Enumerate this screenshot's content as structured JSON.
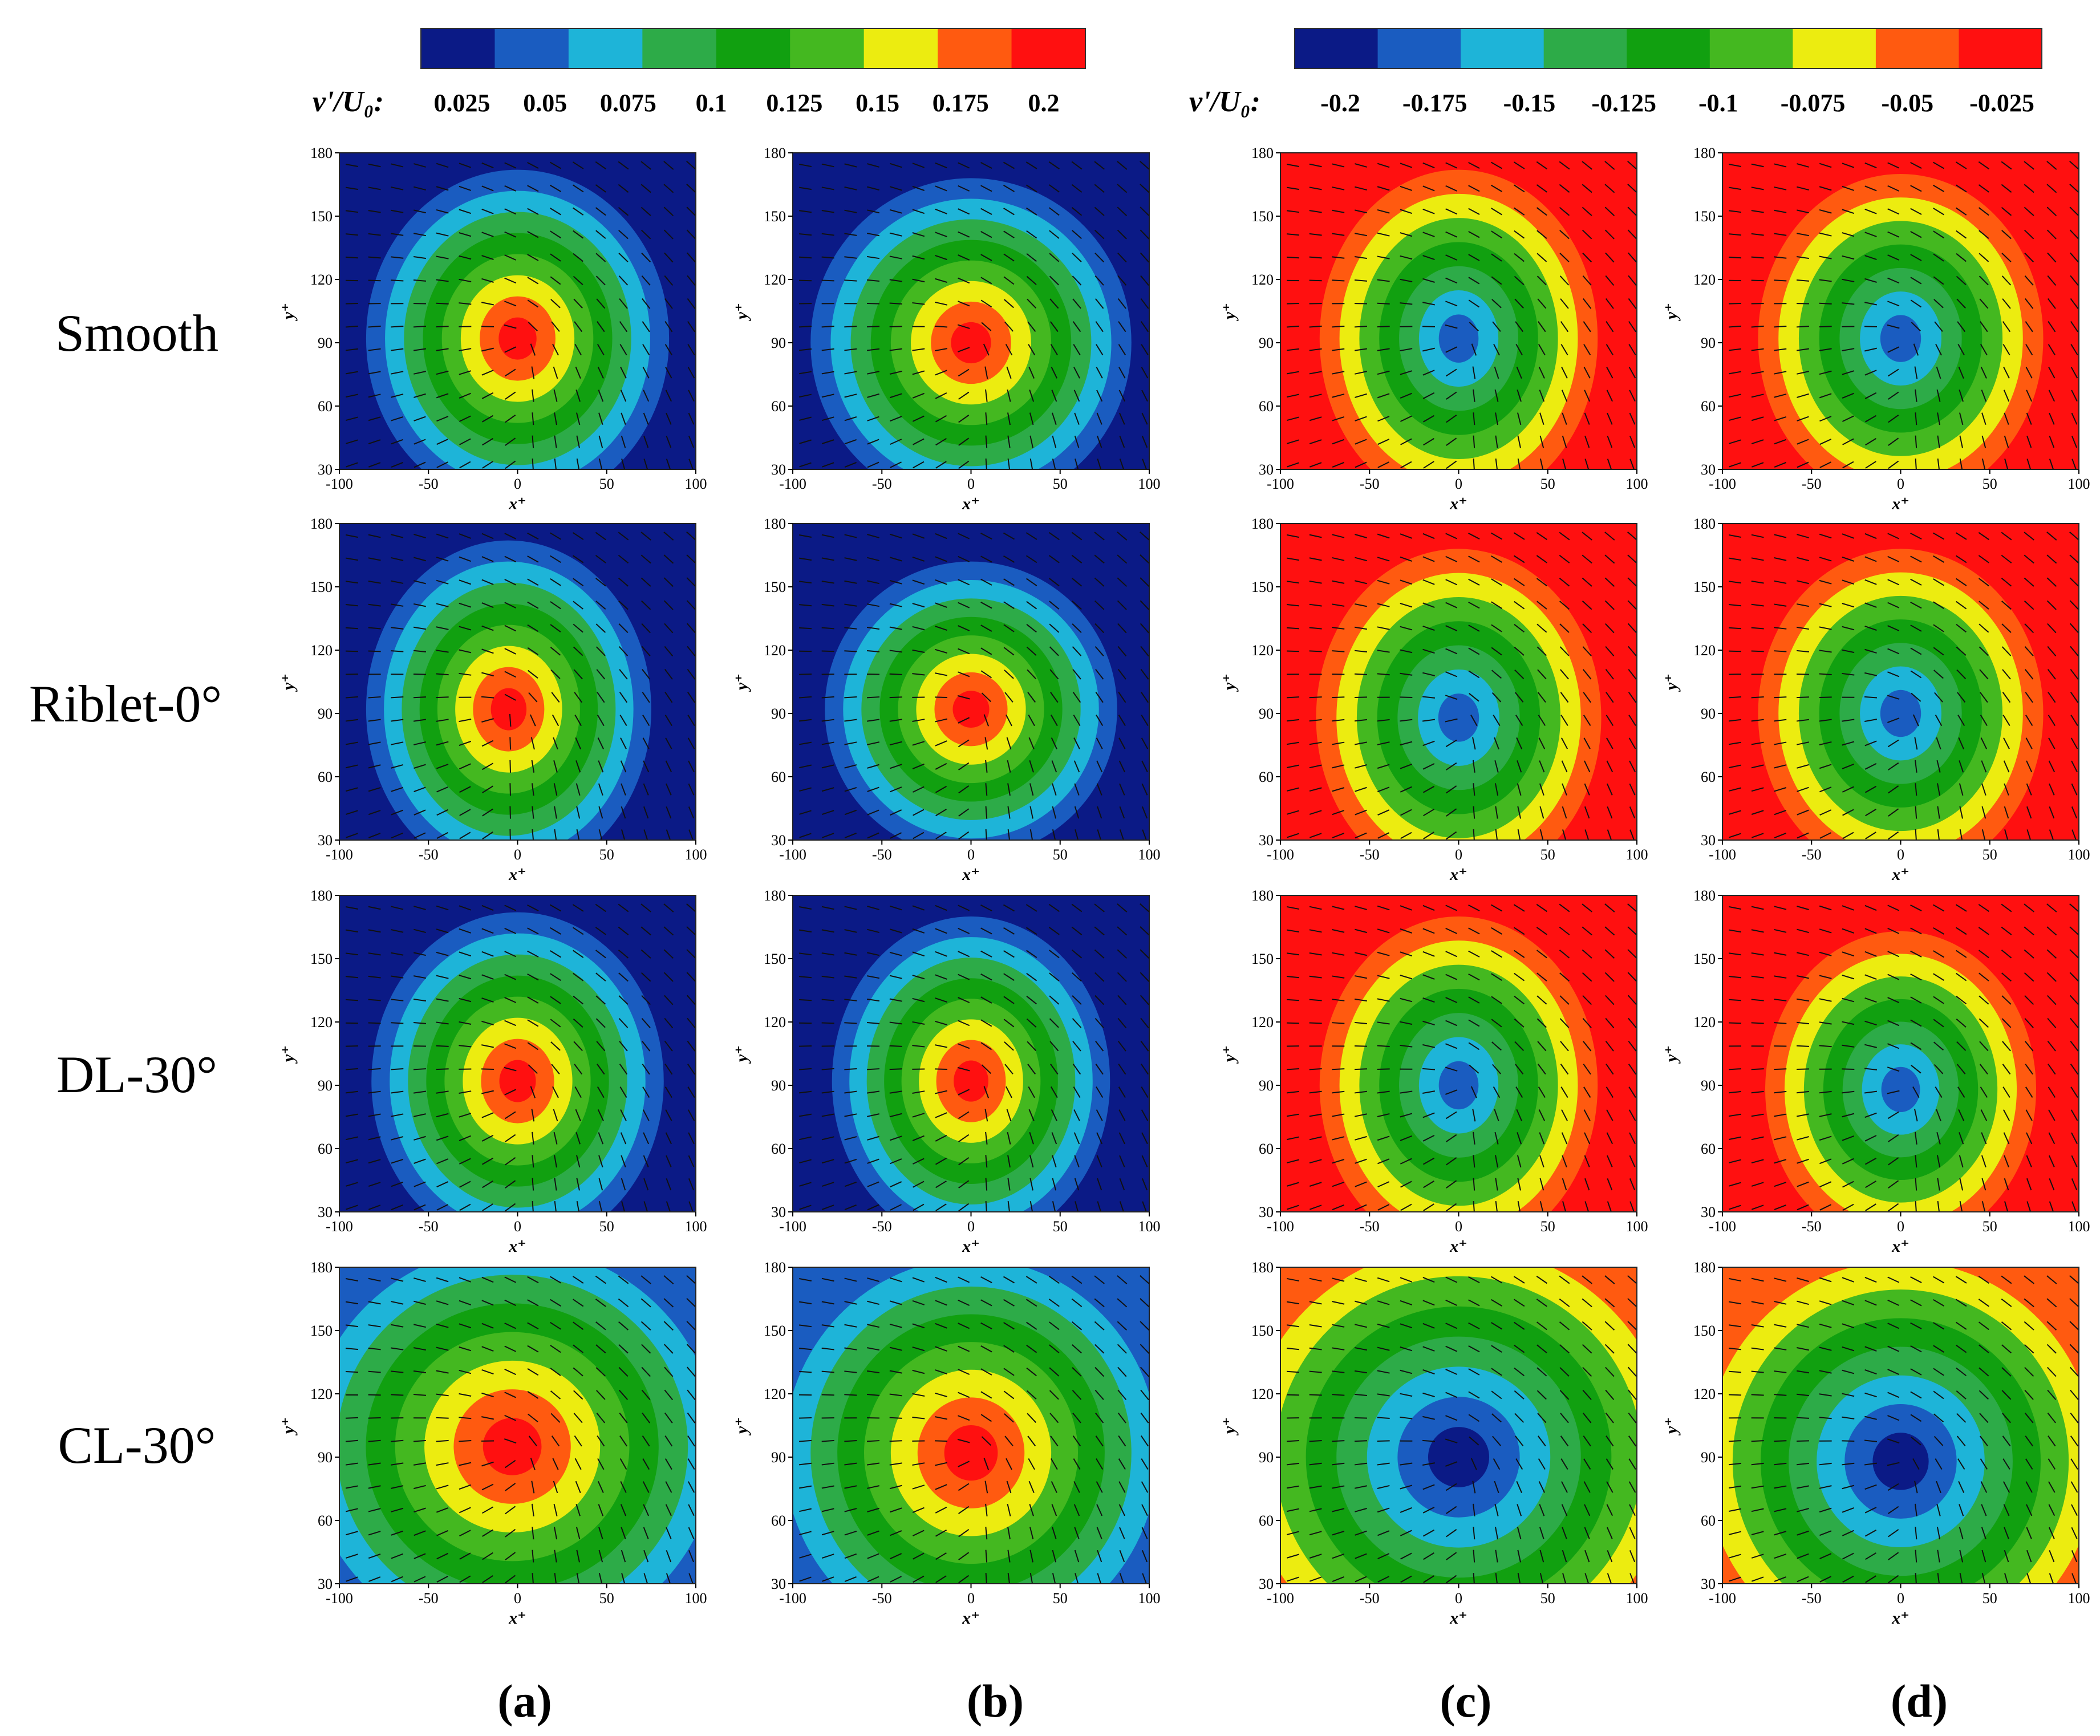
{
  "chart_data": {
    "type": "contour",
    "colorbars": [
      {
        "id": "positive",
        "variable": "v'/U₀:",
        "ticks": [
          "0.025",
          "0.05",
          "0.075",
          "0.1",
          "0.125",
          "0.15",
          "0.175",
          "0.2"
        ],
        "colors": [
          "#0b1a86",
          "#1a5cc0",
          "#1eb4d8",
          "#2dab48",
          "#11a010",
          "#44b820",
          "#ecec10",
          "#ff5a10",
          "#ff1010"
        ]
      },
      {
        "id": "negative",
        "variable": "v'/U₀:",
        "ticks": [
          "-0.2",
          "-0.175",
          "-0.15",
          "-0.125",
          "-0.1",
          "-0.075",
          "-0.05",
          "-0.025"
        ],
        "colors": [
          "#0b1a86",
          "#1a5cc0",
          "#1eb4d8",
          "#2dab48",
          "#11a010",
          "#44b820",
          "#ecec10",
          "#ff5a10",
          "#ff1010"
        ]
      }
    ],
    "x_axis": {
      "label": "x⁺",
      "ticks": [
        "-100",
        "-50",
        "0",
        "50",
        "100"
      ],
      "range": [
        -100,
        100
      ]
    },
    "y_axis": {
      "label": "y⁺",
      "ticks": [
        "30",
        "60",
        "90",
        "120",
        "150",
        "180"
      ],
      "range": [
        30,
        180
      ]
    },
    "rows": [
      "Smooth",
      "Riblet-0°",
      "DL-30°",
      "CL-30°"
    ],
    "columns": [
      "(a)",
      "(b)",
      "(c)",
      "(d)"
    ],
    "panels": [
      {
        "row": 0,
        "col": 0,
        "sign": 1,
        "peak_level": 8,
        "center": [
          0,
          92
        ],
        "extent": [
          85,
          80
        ],
        "base_level": 0
      },
      {
        "row": 0,
        "col": 1,
        "sign": 1,
        "peak_level": 8,
        "center": [
          0,
          90
        ],
        "extent": [
          90,
          78
        ],
        "base_level": 0
      },
      {
        "row": 0,
        "col": 2,
        "sign": -1,
        "peak_level": 7,
        "center": [
          0,
          92
        ],
        "extent": [
          78,
          80
        ],
        "base_level": 0
      },
      {
        "row": 0,
        "col": 3,
        "sign": -1,
        "peak_level": 7,
        "center": [
          0,
          92
        ],
        "extent": [
          80,
          78
        ],
        "base_level": 0
      },
      {
        "row": 1,
        "col": 0,
        "sign": 1,
        "peak_level": 8,
        "center": [
          -5,
          92
        ],
        "extent": [
          80,
          80
        ],
        "base_level": 0
      },
      {
        "row": 1,
        "col": 1,
        "sign": 1,
        "peak_level": 8,
        "center": [
          0,
          92
        ],
        "extent": [
          82,
          70
        ],
        "base_level": 0
      },
      {
        "row": 1,
        "col": 2,
        "sign": -1,
        "peak_level": 7,
        "center": [
          0,
          88
        ],
        "extent": [
          80,
          80
        ],
        "base_level": 0
      },
      {
        "row": 1,
        "col": 3,
        "sign": -1,
        "peak_level": 7,
        "center": [
          0,
          90
        ],
        "extent": [
          80,
          78
        ],
        "base_level": 0
      },
      {
        "row": 2,
        "col": 0,
        "sign": 1,
        "peak_level": 8,
        "center": [
          0,
          92
        ],
        "extent": [
          82,
          80
        ],
        "base_level": 0
      },
      {
        "row": 2,
        "col": 1,
        "sign": 1,
        "peak_level": 8,
        "center": [
          0,
          92
        ],
        "extent": [
          78,
          78
        ],
        "base_level": 0
      },
      {
        "row": 2,
        "col": 2,
        "sign": -1,
        "peak_level": 7,
        "center": [
          0,
          90
        ],
        "extent": [
          78,
          80
        ],
        "base_level": 0
      },
      {
        "row": 2,
        "col": 3,
        "sign": -1,
        "peak_level": 7,
        "center": [
          0,
          88
        ],
        "extent": [
          76,
          75
        ],
        "base_level": 0
      },
      {
        "row": 3,
        "col": 0,
        "sign": 1,
        "peak_level": 8,
        "center": [
          -3,
          95
        ],
        "extent": [
          115,
          95
        ],
        "base_level": 1
      },
      {
        "row": 3,
        "col": 1,
        "sign": 1,
        "peak_level": 8,
        "center": [
          0,
          92
        ],
        "extent": [
          105,
          92
        ],
        "base_level": 1
      },
      {
        "row": 3,
        "col": 2,
        "sign": -1,
        "peak_level": 8,
        "center": [
          0,
          90
        ],
        "extent": [
          120,
          100
        ],
        "base_level": 1
      },
      {
        "row": 3,
        "col": 3,
        "sign": -1,
        "peak_level": 8,
        "center": [
          0,
          88
        ],
        "extent": [
          110,
          95
        ],
        "base_level": 1
      }
    ]
  }
}
